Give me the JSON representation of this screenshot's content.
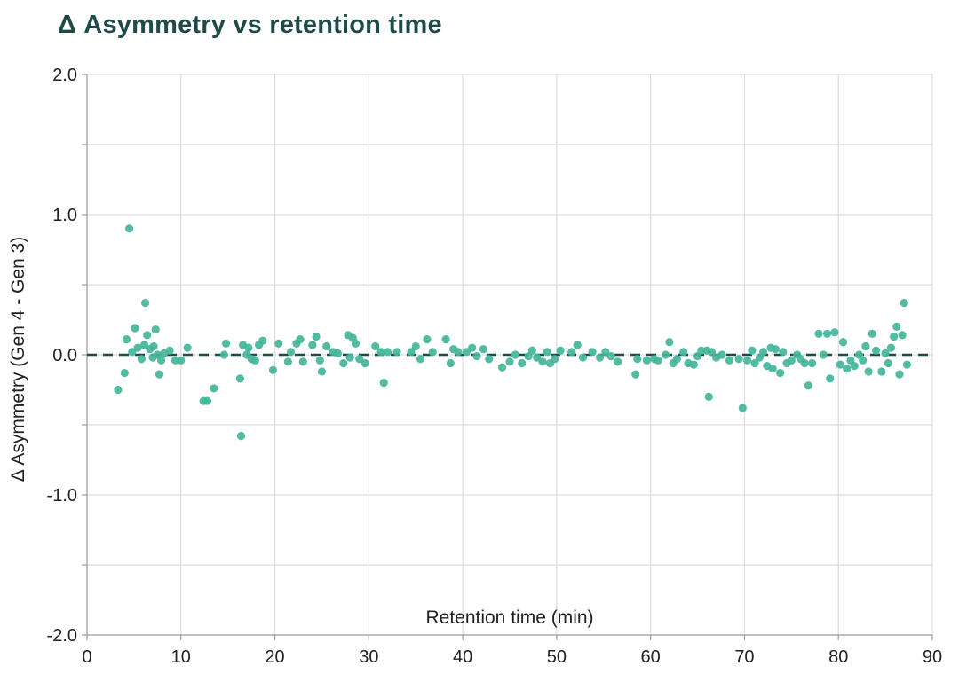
{
  "chart_data": {
    "type": "scatter",
    "title": "Δ Asymmetry vs retention time",
    "xlabel": "Retention time (min)",
    "ylabel": "Δ Asymmetry (Gen 4 - Gen 3)",
    "xlim": [
      0,
      90
    ],
    "ylim": [
      -2.0,
      2.0
    ],
    "x_ticks": [
      0,
      10,
      20,
      30,
      40,
      50,
      60,
      70,
      80,
      90
    ],
    "x_tick_labels": [
      "0",
      "10",
      "20",
      "30",
      "40",
      "50",
      "60",
      "70",
      "80",
      "90"
    ],
    "y_ticks": [
      2.0,
      1.0,
      0.0,
      -1.0,
      -2.0
    ],
    "y_tick_labels": [
      "2.0",
      "1.0",
      "0.0",
      "-1.0",
      "-2.0"
    ],
    "y_minor_ticks": [
      1.5,
      0.5,
      -0.5,
      -1.5
    ],
    "grid": true,
    "reference_line": {
      "y": 0.0,
      "style": "dashed"
    },
    "marker_color": "#43b59a",
    "reference_color": "#1e4b4a",
    "points": [
      [
        3.3,
        -0.25
      ],
      [
        4.0,
        -0.13
      ],
      [
        4.2,
        0.11
      ],
      [
        4.5,
        0.9
      ],
      [
        4.8,
        0.02
      ],
      [
        5.1,
        0.19
      ],
      [
        5.4,
        0.05
      ],
      [
        5.8,
        -0.03
      ],
      [
        6.1,
        0.07
      ],
      [
        6.2,
        0.37
      ],
      [
        6.4,
        0.14
      ],
      [
        6.7,
        0.04
      ],
      [
        7.0,
        -0.02
      ],
      [
        7.1,
        0.06
      ],
      [
        7.3,
        0.18
      ],
      [
        7.5,
        0.0
      ],
      [
        7.7,
        -0.14
      ],
      [
        7.9,
        -0.04
      ],
      [
        8.2,
        0.01
      ],
      [
        8.8,
        0.03
      ],
      [
        9.4,
        -0.04
      ],
      [
        10.0,
        -0.04
      ],
      [
        10.7,
        0.05
      ],
      [
        12.4,
        -0.33
      ],
      [
        12.8,
        -0.33
      ],
      [
        13.5,
        -0.24
      ],
      [
        14.6,
        0.0
      ],
      [
        14.8,
        0.08
      ],
      [
        16.3,
        -0.17
      ],
      [
        16.4,
        -0.58
      ],
      [
        16.6,
        0.07
      ],
      [
        17.0,
        0.0
      ],
      [
        17.2,
        0.05
      ],
      [
        17.5,
        -0.03
      ],
      [
        17.9,
        -0.04
      ],
      [
        18.3,
        0.07
      ],
      [
        18.7,
        0.1
      ],
      [
        19.8,
        -0.11
      ],
      [
        20.4,
        0.08
      ],
      [
        21.4,
        -0.05
      ],
      [
        21.7,
        0.02
      ],
      [
        22.3,
        0.08
      ],
      [
        22.7,
        0.11
      ],
      [
        23.0,
        -0.05
      ],
      [
        24.0,
        0.07
      ],
      [
        24.4,
        0.13
      ],
      [
        24.8,
        -0.04
      ],
      [
        25.0,
        -0.12
      ],
      [
        25.5,
        0.06
      ],
      [
        26.2,
        0.02
      ],
      [
        26.7,
        0.01
      ],
      [
        27.3,
        -0.06
      ],
      [
        27.8,
        0.14
      ],
      [
        28.0,
        -0.02
      ],
      [
        28.3,
        0.12
      ],
      [
        28.6,
        0.08
      ],
      [
        29.0,
        -0.03
      ],
      [
        29.6,
        -0.06
      ],
      [
        30.7,
        0.06
      ],
      [
        31.3,
        0.02
      ],
      [
        31.6,
        -0.2
      ],
      [
        32.0,
        0.02
      ],
      [
        33.0,
        0.02
      ],
      [
        34.5,
        0.02
      ],
      [
        35.0,
        0.06
      ],
      [
        35.5,
        -0.03
      ],
      [
        36.2,
        0.11
      ],
      [
        36.8,
        0.02
      ],
      [
        38.2,
        0.11
      ],
      [
        38.7,
        -0.06
      ],
      [
        39.0,
        0.04
      ],
      [
        39.5,
        0.02
      ],
      [
        40.4,
        0.02
      ],
      [
        41.0,
        0.05
      ],
      [
        41.5,
        -0.01
      ],
      [
        42.2,
        0.04
      ],
      [
        42.8,
        -0.03
      ],
      [
        44.2,
        -0.09
      ],
      [
        45.0,
        -0.05
      ],
      [
        45.6,
        0.0
      ],
      [
        46.3,
        -0.06
      ],
      [
        47.0,
        -0.01
      ],
      [
        47.4,
        0.03
      ],
      [
        47.9,
        -0.02
      ],
      [
        48.5,
        -0.05
      ],
      [
        49.0,
        0.02
      ],
      [
        49.3,
        -0.06
      ],
      [
        49.8,
        -0.03
      ],
      [
        50.4,
        0.03
      ],
      [
        51.6,
        0.02
      ],
      [
        52.2,
        0.07
      ],
      [
        52.8,
        -0.02
      ],
      [
        53.8,
        0.02
      ],
      [
        54.6,
        -0.02
      ],
      [
        55.2,
        0.02
      ],
      [
        55.8,
        -0.01
      ],
      [
        56.5,
        -0.05
      ],
      [
        58.4,
        -0.14
      ],
      [
        58.6,
        -0.03
      ],
      [
        59.6,
        -0.04
      ],
      [
        60.4,
        -0.03
      ],
      [
        60.8,
        -0.04
      ],
      [
        61.6,
        0.0
      ],
      [
        62.0,
        0.09
      ],
      [
        62.4,
        -0.06
      ],
      [
        62.8,
        -0.03
      ],
      [
        63.5,
        0.02
      ],
      [
        64.0,
        -0.06
      ],
      [
        64.6,
        -0.07
      ],
      [
        65.0,
        -0.01
      ],
      [
        65.4,
        0.03
      ],
      [
        66.0,
        0.03
      ],
      [
        66.2,
        -0.3
      ],
      [
        66.5,
        0.02
      ],
      [
        67.0,
        -0.02
      ],
      [
        67.6,
        0.0
      ],
      [
        68.4,
        -0.04
      ],
      [
        69.4,
        -0.03
      ],
      [
        69.8,
        -0.38
      ],
      [
        70.3,
        -0.04
      ],
      [
        70.8,
        0.03
      ],
      [
        71.1,
        -0.06
      ],
      [
        71.6,
        -0.02
      ],
      [
        72.0,
        0.02
      ],
      [
        72.4,
        -0.08
      ],
      [
        72.8,
        0.05
      ],
      [
        73.0,
        -0.1
      ],
      [
        73.3,
        0.04
      ],
      [
        73.8,
        -0.13
      ],
      [
        74.1,
        0.02
      ],
      [
        74.5,
        -0.06
      ],
      [
        75.0,
        -0.04
      ],
      [
        75.6,
        0.0
      ],
      [
        76.0,
        -0.03
      ],
      [
        76.4,
        -0.06
      ],
      [
        76.8,
        -0.22
      ],
      [
        77.2,
        -0.06
      ],
      [
        77.9,
        0.15
      ],
      [
        78.4,
        0.0
      ],
      [
        78.8,
        0.15
      ],
      [
        79.1,
        -0.17
      ],
      [
        79.6,
        0.16
      ],
      [
        80.2,
        -0.07
      ],
      [
        80.5,
        0.09
      ],
      [
        80.9,
        -0.1
      ],
      [
        81.3,
        -0.04
      ],
      [
        81.7,
        -0.08
      ],
      [
        82.2,
        0.0
      ],
      [
        82.6,
        -0.04
      ],
      [
        82.9,
        0.06
      ],
      [
        83.2,
        -0.12
      ],
      [
        83.6,
        0.15
      ],
      [
        84.0,
        0.03
      ],
      [
        84.6,
        -0.12
      ],
      [
        85.0,
        0.01
      ],
      [
        85.3,
        -0.06
      ],
      [
        85.6,
        0.05
      ],
      [
        85.9,
        0.13
      ],
      [
        86.2,
        0.2
      ],
      [
        86.5,
        -0.14
      ],
      [
        86.8,
        0.14
      ],
      [
        87.0,
        0.37
      ],
      [
        87.3,
        -0.07
      ]
    ]
  }
}
